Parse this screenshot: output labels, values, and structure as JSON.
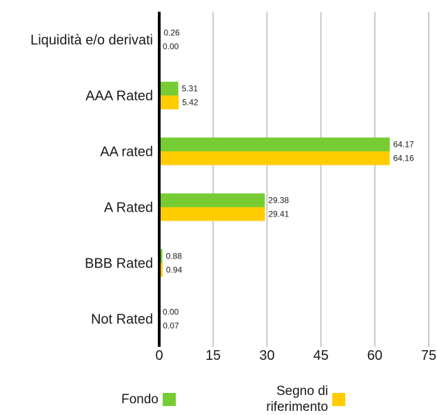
{
  "colors": {
    "fondo": "#77cc33",
    "segno": "#ffcc00",
    "axis": "#000000",
    "grid": "#c8c8c8"
  },
  "chart_data": {
    "type": "bar",
    "orientation": "horizontal",
    "categories": [
      "Liquidità e/o derivati",
      "AAA Rated",
      "AA rated",
      "A Rated",
      "BBB Rated",
      "Not Rated"
    ],
    "series": [
      {
        "name": "Fondo",
        "values": [
          0.26,
          5.31,
          64.17,
          29.38,
          0.88,
          0.0
        ],
        "labels": [
          "0.26",
          "5.31",
          "64.17",
          "29.38",
          "0.88",
          "0.00"
        ]
      },
      {
        "name": "Segno di riferimento",
        "values": [
          0.0,
          5.42,
          64.16,
          29.41,
          0.94,
          0.07
        ],
        "labels": [
          "0.00",
          "5.42",
          "64.16",
          "29.41",
          "0.94",
          "0.07"
        ]
      }
    ],
    "xlim": [
      0,
      75
    ],
    "xticks": [
      "0",
      "15",
      "30",
      "45",
      "60",
      "75"
    ],
    "grid": true,
    "legend_position": "bottom"
  },
  "legend": {
    "fondo_label": "Fondo",
    "segno_line1": "Segno di",
    "segno_line2": "riferimento"
  }
}
